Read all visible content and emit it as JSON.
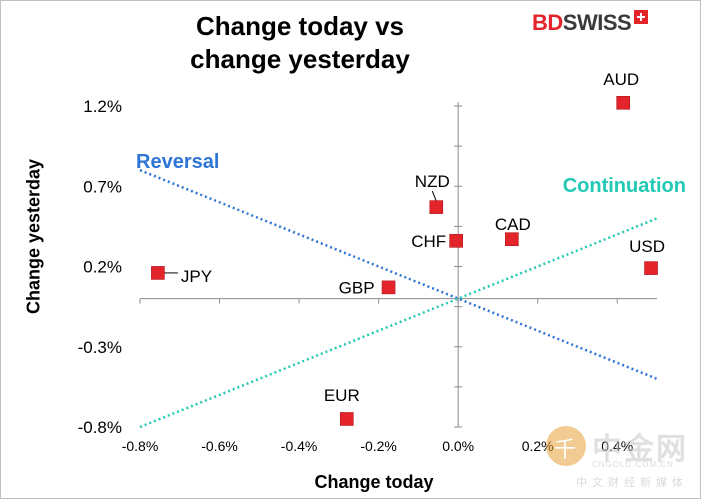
{
  "chart_data": {
    "type": "scatter",
    "title_line1": "Change today vs",
    "title_line2": "change yesterday",
    "xlabel": "Change today",
    "ylabel": "Change yesterday",
    "xlim": [
      -0.8,
      0.5
    ],
    "ylim": [
      -0.8,
      1.2
    ],
    "x_ticks": [
      -0.8,
      -0.6,
      -0.4,
      -0.2,
      0.0,
      0.2,
      0.4
    ],
    "x_tick_labels": [
      "-0.8%",
      "-0.6%",
      "-0.4%",
      "-0.2%",
      "0.0%",
      "0.2%",
      "0.4%"
    ],
    "y_ticks": [
      -0.8,
      -0.3,
      0.2,
      0.7,
      1.2
    ],
    "y_tick_labels": [
      "-0.8%",
      "-0.3%",
      "0.2%",
      "0.7%",
      "1.2%"
    ],
    "points": [
      {
        "label": "AUD",
        "x": 0.415,
        "y": 1.22
      },
      {
        "label": "NZD",
        "x": -0.055,
        "y": 0.57
      },
      {
        "label": "CAD",
        "x": 0.135,
        "y": 0.37
      },
      {
        "label": "CHF",
        "x": -0.005,
        "y": 0.36
      },
      {
        "label": "USD",
        "x": 0.485,
        "y": 0.19
      },
      {
        "label": "JPY",
        "x": -0.755,
        "y": 0.16
      },
      {
        "label": "GBP",
        "x": -0.175,
        "y": 0.07
      },
      {
        "label": "EUR",
        "x": -0.28,
        "y": -0.75
      }
    ],
    "trend_lines": [
      {
        "name": "Reversal",
        "color": "#2e75d6",
        "x": [
          -0.8,
          0.5
        ],
        "y": [
          0.8,
          -0.5
        ]
      },
      {
        "name": "Continuation",
        "color": "#22c9b4",
        "x": [
          -0.8,
          0.5
        ],
        "y": [
          -0.8,
          0.5
        ]
      }
    ],
    "marker_color": "#e3242b"
  },
  "logo": {
    "part1": "BD",
    "part2": "SWISS"
  },
  "watermark": {
    "name": "中金网",
    "domain": "CNGOLD.COM.CN",
    "sub": "中文财经新媒体"
  }
}
